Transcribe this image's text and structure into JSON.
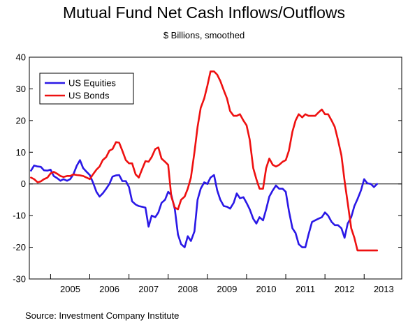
{
  "chart_data": {
    "type": "line",
    "title": "Mutual Fund Net Cash Inflows/Outflows",
    "subtitle": "$ Billions, smoothed",
    "source": "Source: Investment Company Institute",
    "ylim": [
      -30,
      40
    ],
    "yticks": [
      -30,
      -20,
      -10,
      0,
      10,
      20,
      30,
      40
    ],
    "xlim": [
      2004.458,
      2013.958
    ],
    "xtick_labels": [
      "2005",
      "2006",
      "2007",
      "2008",
      "2009",
      "2010",
      "2011",
      "2012",
      "2013"
    ],
    "grid": false,
    "legend_position": "top-left",
    "series": [
      {
        "name": "US Equities",
        "color": "#2a18e6",
        "x": [
          2004.5,
          2004.58,
          2004.67,
          2004.75,
          2004.83,
          2004.92,
          2005.0,
          2005.08,
          2005.17,
          2005.25,
          2005.33,
          2005.42,
          2005.5,
          2005.58,
          2005.67,
          2005.75,
          2005.83,
          2005.92,
          2006.0,
          2006.08,
          2006.17,
          2006.25,
          2006.33,
          2006.42,
          2006.5,
          2006.58,
          2006.67,
          2006.75,
          2006.83,
          2006.92,
          2007.0,
          2007.08,
          2007.17,
          2007.25,
          2007.33,
          2007.42,
          2007.5,
          2007.58,
          2007.67,
          2007.75,
          2007.83,
          2007.92,
          2008.0,
          2008.08,
          2008.17,
          2008.25,
          2008.33,
          2008.42,
          2008.5,
          2008.58,
          2008.67,
          2008.75,
          2008.83,
          2008.92,
          2009.0,
          2009.08,
          2009.17,
          2009.25,
          2009.33,
          2009.42,
          2009.5,
          2009.58,
          2009.67,
          2009.75,
          2009.83,
          2009.92,
          2010.0,
          2010.08,
          2010.17,
          2010.25,
          2010.33,
          2010.42,
          2010.5,
          2010.58,
          2010.67,
          2010.75,
          2010.83,
          2010.92,
          2011.0,
          2011.08,
          2011.17,
          2011.25,
          2011.33,
          2011.42,
          2011.5,
          2011.58,
          2011.67,
          2011.75,
          2011.83,
          2011.92,
          2012.0,
          2012.08,
          2012.17,
          2012.25,
          2012.33,
          2012.42,
          2012.5,
          2012.58,
          2012.67,
          2012.75,
          2012.83,
          2012.92,
          2013.0,
          2013.08,
          2013.17,
          2013.25,
          2013.33
        ],
        "y": [
          4.2,
          5.8,
          5.5,
          5.4,
          4.3,
          4.2,
          4.5,
          2.5,
          1.8,
          1.0,
          1.5,
          1.0,
          1.5,
          3.0,
          5.8,
          7.5,
          5.0,
          3.8,
          2.8,
          0.5,
          -2.5,
          -4.0,
          -3.0,
          -1.5,
          0.0,
          2.3,
          2.7,
          2.8,
          0.9,
          0.9,
          -1.0,
          -5.5,
          -6.5,
          -7.0,
          -7.2,
          -7.5,
          -13.5,
          -10.0,
          -10.5,
          -9.0,
          -6.0,
          -5.0,
          -2.5,
          -3.5,
          -8.0,
          -16.0,
          -19.0,
          -20.0,
          -16.5,
          -18.0,
          -15.0,
          -5.0,
          -1.5,
          0.5,
          0.0,
          2.0,
          2.8,
          -2.0,
          -5.0,
          -7.0,
          -7.2,
          -7.8,
          -6.0,
          -3.0,
          -4.5,
          -4.2,
          -6.0,
          -8.0,
          -11.0,
          -12.5,
          -10.5,
          -11.5,
          -8.0,
          -4.0,
          -2.0,
          -0.5,
          -1.5,
          -1.5,
          -2.5,
          -8.5,
          -14.0,
          -15.5,
          -19.0,
          -20.0,
          -20.0,
          -16.0,
          -12.0,
          -11.5,
          -11.0,
          -10.5,
          -9.0,
          -10.0,
          -12.0,
          -13.0,
          -13.0,
          -14.0,
          -17.0,
          -12.5,
          -10.5,
          -7.0,
          -4.8,
          -2.0,
          1.5,
          0.2,
          0.0,
          -1.0,
          0.0
        ]
      },
      {
        "name": "US Bonds",
        "color": "#ee1010",
        "x": [
          2004.5,
          2004.58,
          2004.67,
          2004.75,
          2004.83,
          2004.92,
          2005.0,
          2005.08,
          2005.17,
          2005.25,
          2005.33,
          2005.42,
          2005.5,
          2005.58,
          2005.67,
          2005.75,
          2005.83,
          2005.92,
          2006.0,
          2006.08,
          2006.17,
          2006.25,
          2006.33,
          2006.42,
          2006.5,
          2006.58,
          2006.67,
          2006.75,
          2006.83,
          2006.92,
          2007.0,
          2007.08,
          2007.17,
          2007.25,
          2007.33,
          2007.42,
          2007.5,
          2007.58,
          2007.67,
          2007.75,
          2007.83,
          2007.92,
          2008.0,
          2008.08,
          2008.17,
          2008.25,
          2008.33,
          2008.42,
          2008.5,
          2008.58,
          2008.67,
          2008.75,
          2008.83,
          2008.92,
          2009.0,
          2009.08,
          2009.17,
          2009.25,
          2009.33,
          2009.42,
          2009.5,
          2009.58,
          2009.67,
          2009.75,
          2009.83,
          2009.92,
          2010.0,
          2010.08,
          2010.17,
          2010.25,
          2010.33,
          2010.42,
          2010.5,
          2010.58,
          2010.67,
          2010.75,
          2010.83,
          2010.92,
          2011.0,
          2011.08,
          2011.17,
          2011.25,
          2011.33,
          2011.42,
          2011.5,
          2011.58,
          2011.67,
          2011.75,
          2011.83,
          2011.92,
          2012.0,
          2012.08,
          2012.17,
          2012.25,
          2012.33,
          2012.42,
          2012.5,
          2012.58,
          2012.67,
          2012.75,
          2012.83,
          2012.92,
          2013.0,
          2013.08,
          2013.17,
          2013.25,
          2013.33
        ],
        "y": [
          2.0,
          1.5,
          0.5,
          0.8,
          1.5,
          2.0,
          3.3,
          3.8,
          3.2,
          2.5,
          2.2,
          2.5,
          2.5,
          3.0,
          2.8,
          2.7,
          2.5,
          2.0,
          1.5,
          3.0,
          4.5,
          5.5,
          7.5,
          8.5,
          10.5,
          11.0,
          13.2,
          13.0,
          10.5,
          7.5,
          6.5,
          6.5,
          3.0,
          2.0,
          4.5,
          7.2,
          7.0,
          8.5,
          11.0,
          11.5,
          8.0,
          7.0,
          6.0,
          -4.0,
          -7.5,
          -8.0,
          -5.0,
          -4.0,
          -1.5,
          2.0,
          10.0,
          18.0,
          24.0,
          27.0,
          31.0,
          35.5,
          35.5,
          34.5,
          32.5,
          29.5,
          27.0,
          23.0,
          21.5,
          21.5,
          22.0,
          20.0,
          18.5,
          14.0,
          5.0,
          1.5,
          -1.5,
          -1.5,
          5.0,
          8.0,
          6.0,
          5.5,
          6.0,
          7.0,
          7.5,
          10.5,
          16.5,
          20.0,
          22.0,
          21.0,
          22.0,
          21.5,
          21.5,
          21.5,
          22.5,
          23.5,
          22.0,
          22.0,
          20.0,
          18.0,
          14.0,
          9.0,
          1.0,
          -6.0,
          -14.0,
          -17.0,
          -21.0,
          -21.0,
          -21.0,
          -21.0,
          -21.0,
          -21.0,
          -21.0
        ]
      }
    ]
  }
}
